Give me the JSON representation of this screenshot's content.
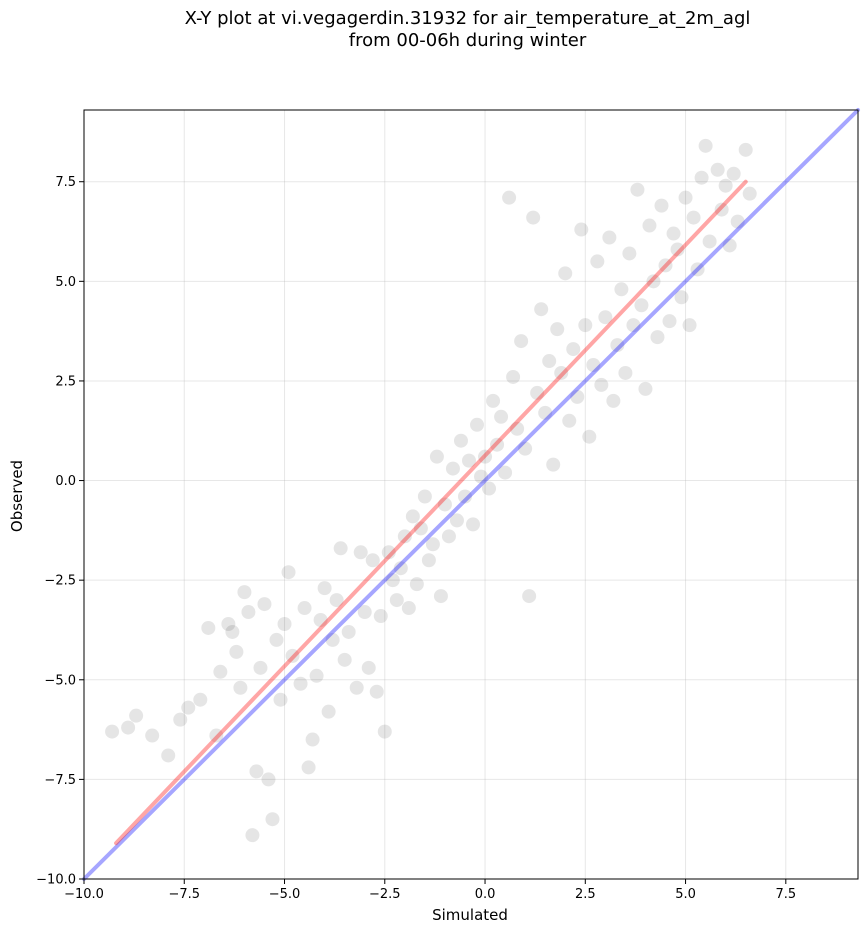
{
  "title_line1": "X-Y plot at vi.vegagerdin.31932 for air_temperature_at_2m_agl",
  "title_line2": "from 00-06h during winter",
  "chart_data": {
    "type": "scatter",
    "xlabel": "Simulated",
    "ylabel": "Observed",
    "xlim": [
      -10.0,
      9.3
    ],
    "ylim": [
      -10.0,
      9.3
    ],
    "grid": true,
    "xticks": [
      -10.0,
      -7.5,
      -5.0,
      -2.5,
      0.0,
      2.5,
      5.0,
      7.5
    ],
    "yticks": [
      -10.0,
      -7.5,
      -5.0,
      -2.5,
      0.0,
      2.5,
      5.0,
      7.5
    ],
    "xtick_labels": [
      "−10.0",
      "−7.5",
      "−5.0",
      "−2.5",
      "0.0",
      "2.5",
      "5.0",
      "7.5"
    ],
    "ytick_labels": [
      "−10.0",
      "−7.5",
      "−5.0",
      "−2.5",
      "0.0",
      "2.5",
      "5.0",
      "7.5"
    ],
    "points": [
      [
        -9.3,
        -6.3
      ],
      [
        -8.9,
        -6.2
      ],
      [
        -8.7,
        -5.9
      ],
      [
        -8.3,
        -6.4
      ],
      [
        -7.9,
        -6.9
      ],
      [
        -7.6,
        -6.0
      ],
      [
        -7.4,
        -5.7
      ],
      [
        -7.1,
        -5.5
      ],
      [
        -6.9,
        -3.7
      ],
      [
        -6.7,
        -6.4
      ],
      [
        -6.6,
        -4.8
      ],
      [
        -6.4,
        -3.6
      ],
      [
        -6.3,
        -3.8
      ],
      [
        -6.2,
        -4.3
      ],
      [
        -6.1,
        -5.2
      ],
      [
        -6.0,
        -2.8
      ],
      [
        -5.9,
        -3.3
      ],
      [
        -5.8,
        -8.9
      ],
      [
        -5.7,
        -7.3
      ],
      [
        -5.6,
        -4.7
      ],
      [
        -5.5,
        -3.1
      ],
      [
        -5.4,
        -7.5
      ],
      [
        -5.3,
        -8.5
      ],
      [
        -5.2,
        -4.0
      ],
      [
        -5.1,
        -5.5
      ],
      [
        -5.0,
        -3.6
      ],
      [
        -4.9,
        -2.3
      ],
      [
        -4.8,
        -4.4
      ],
      [
        -4.6,
        -5.1
      ],
      [
        -4.5,
        -3.2
      ],
      [
        -4.4,
        -7.2
      ],
      [
        -4.3,
        -6.5
      ],
      [
        -4.2,
        -4.9
      ],
      [
        -4.1,
        -3.5
      ],
      [
        -4.0,
        -2.7
      ],
      [
        -3.9,
        -5.8
      ],
      [
        -3.8,
        -4.0
      ],
      [
        -3.7,
        -3.0
      ],
      [
        -3.6,
        -1.7
      ],
      [
        -3.5,
        -4.5
      ],
      [
        -3.4,
        -3.8
      ],
      [
        -3.2,
        -5.2
      ],
      [
        -3.1,
        -1.8
      ],
      [
        -3.0,
        -3.3
      ],
      [
        -2.9,
        -4.7
      ],
      [
        -2.8,
        -2.0
      ],
      [
        -2.7,
        -5.3
      ],
      [
        -2.6,
        -3.4
      ],
      [
        -2.5,
        -6.3
      ],
      [
        -2.4,
        -1.8
      ],
      [
        -2.3,
        -2.5
      ],
      [
        -2.2,
        -3.0
      ],
      [
        -2.1,
        -2.2
      ],
      [
        -2.0,
        -1.4
      ],
      [
        -1.9,
        -3.2
      ],
      [
        -1.8,
        -0.9
      ],
      [
        -1.7,
        -2.6
      ],
      [
        -1.6,
        -1.2
      ],
      [
        -1.5,
        -0.4
      ],
      [
        -1.4,
        -2.0
      ],
      [
        -1.3,
        -1.6
      ],
      [
        -1.2,
        0.6
      ],
      [
        -1.1,
        -2.9
      ],
      [
        -1.0,
        -0.6
      ],
      [
        -0.9,
        -1.4
      ],
      [
        -0.8,
        0.3
      ],
      [
        -0.7,
        -1.0
      ],
      [
        -0.6,
        1.0
      ],
      [
        -0.5,
        -0.4
      ],
      [
        -0.4,
        0.5
      ],
      [
        -0.3,
        -1.1
      ],
      [
        -0.2,
        1.4
      ],
      [
        -0.1,
        0.1
      ],
      [
        0.0,
        0.6
      ],
      [
        0.1,
        -0.2
      ],
      [
        0.2,
        2.0
      ],
      [
        0.3,
        0.9
      ],
      [
        0.4,
        1.6
      ],
      [
        0.5,
        0.2
      ],
      [
        0.6,
        7.1
      ],
      [
        0.7,
        2.6
      ],
      [
        0.8,
        1.3
      ],
      [
        0.9,
        3.5
      ],
      [
        1.0,
        0.8
      ],
      [
        1.1,
        -2.9
      ],
      [
        1.2,
        6.6
      ],
      [
        1.3,
        2.2
      ],
      [
        1.4,
        4.3
      ],
      [
        1.5,
        1.7
      ],
      [
        1.6,
        3.0
      ],
      [
        1.7,
        0.4
      ],
      [
        1.8,
        3.8
      ],
      [
        1.9,
        2.7
      ],
      [
        2.0,
        5.2
      ],
      [
        2.1,
        1.5
      ],
      [
        2.2,
        3.3
      ],
      [
        2.3,
        2.1
      ],
      [
        2.4,
        6.3
      ],
      [
        2.5,
        3.9
      ],
      [
        2.6,
        1.1
      ],
      [
        2.7,
        2.9
      ],
      [
        2.8,
        5.5
      ],
      [
        2.9,
        2.4
      ],
      [
        3.0,
        4.1
      ],
      [
        3.1,
        6.1
      ],
      [
        3.2,
        2.0
      ],
      [
        3.3,
        3.4
      ],
      [
        3.4,
        4.8
      ],
      [
        3.5,
        2.7
      ],
      [
        3.6,
        5.7
      ],
      [
        3.7,
        3.9
      ],
      [
        3.8,
        7.3
      ],
      [
        3.9,
        4.4
      ],
      [
        4.0,
        2.3
      ],
      [
        4.1,
        6.4
      ],
      [
        4.2,
        5.0
      ],
      [
        4.3,
        3.6
      ],
      [
        4.4,
        6.9
      ],
      [
        4.5,
        5.4
      ],
      [
        4.6,
        4.0
      ],
      [
        4.7,
        6.2
      ],
      [
        4.8,
        5.8
      ],
      [
        4.9,
        4.6
      ],
      [
        5.0,
        7.1
      ],
      [
        5.1,
        3.9
      ],
      [
        5.2,
        6.6
      ],
      [
        5.3,
        5.3
      ],
      [
        5.4,
        7.6
      ],
      [
        5.5,
        8.4
      ],
      [
        5.6,
        6.0
      ],
      [
        5.8,
        7.8
      ],
      [
        5.9,
        6.8
      ],
      [
        6.0,
        7.4
      ],
      [
        6.1,
        5.9
      ],
      [
        6.2,
        7.7
      ],
      [
        6.3,
        6.5
      ],
      [
        6.5,
        8.3
      ],
      [
        6.6,
        7.2
      ]
    ],
    "lines": [
      {
        "color": "#0000ff",
        "from": [
          -10.0,
          -10.0
        ],
        "to": [
          9.3,
          9.3
        ]
      },
      {
        "color": "#ff0000",
        "from": [
          -9.2,
          -9.1
        ],
        "to": [
          6.5,
          7.5
        ]
      }
    ],
    "point_color": "#000000"
  }
}
